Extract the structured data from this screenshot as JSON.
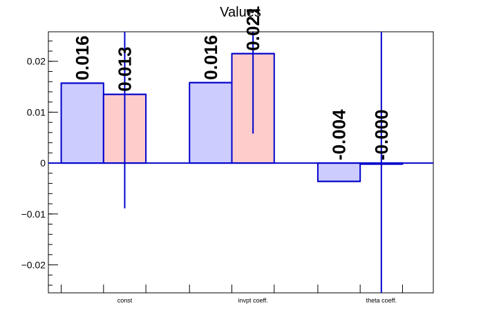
{
  "chart_data": {
    "type": "bar",
    "title": "Values",
    "xlabel": "",
    "ylabel": "",
    "categories": [
      "const",
      "invpt coeff.",
      "theta coeff."
    ],
    "ylim": [
      -0.0255,
      0.0258
    ],
    "yticks": [
      -0.02,
      -0.01,
      0,
      0.01,
      0.02
    ],
    "ytick_labels": [
      "−0.02",
      "−0.01",
      "0",
      "0.01",
      "0.02"
    ],
    "series": [
      {
        "values": [
          0.0157,
          0.0158,
          -0.0036
        ],
        "labels": [
          "0.016",
          "0.016",
          "-0.004"
        ],
        "color": "#ccccff",
        "errors": null
      },
      {
        "values": [
          0.0135,
          0.0215,
          -0.0002
        ],
        "labels": [
          "0.013",
          "0.021",
          "-0.000"
        ],
        "color": "#ffcccc",
        "errors": [
          [
            -0.0089,
            0.0258
          ],
          [
            0.0058,
            0.0258
          ],
          [
            -0.0255,
            0.0258
          ]
        ]
      }
    ],
    "edge_color": "#0000cc",
    "grid": false,
    "legend": "none"
  }
}
